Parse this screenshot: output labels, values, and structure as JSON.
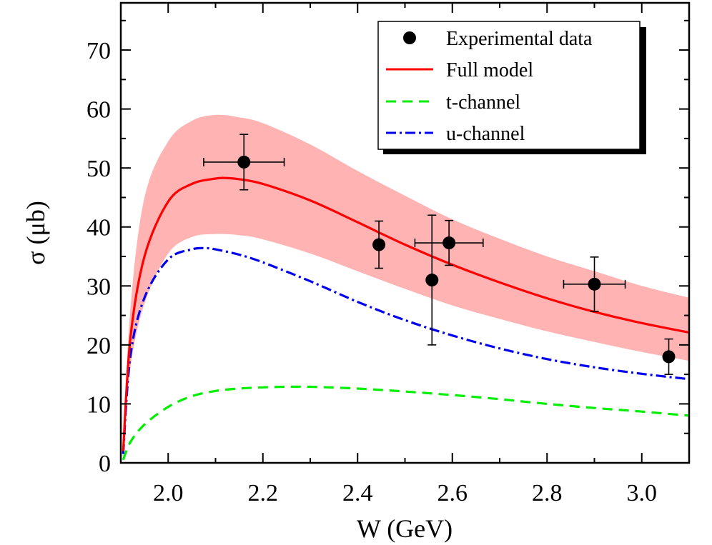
{
  "chart_data": {
    "type": "line",
    "title": "",
    "xlabel": "W (GeV)",
    "ylabel": "σ (μb)",
    "xlim": [
      1.9,
      3.1
    ],
    "ylim": [
      0,
      78
    ],
    "x_ticks": [
      2.0,
      2.2,
      2.4,
      2.6,
      2.8,
      3.0
    ],
    "x_tick_labels": [
      "2.0",
      "2.2",
      "2.4",
      "2.6",
      "2.8",
      "3.0"
    ],
    "y_ticks": [
      0,
      10,
      20,
      30,
      40,
      50,
      60,
      70
    ],
    "y_tick_labels": [
      "0",
      "10",
      "20",
      "30",
      "40",
      "50",
      "60",
      "70"
    ],
    "grid": false,
    "legend_position": "top-right",
    "legend": [
      "Experimental data",
      "Full model",
      "t-channel",
      "u-channel"
    ],
    "colors": {
      "data": "#000000",
      "full": "#ff0000",
      "t": "#00ee00",
      "u": "#0000ee",
      "band": "#ffb3b3"
    },
    "experimental_data": [
      {
        "x": 2.16,
        "y": 51.0,
        "xerr": 0.085,
        "yerr": 4.7
      },
      {
        "x": 2.445,
        "y": 37.0,
        "xerr": 0.0,
        "yerr": 4.0
      },
      {
        "x": 2.557,
        "y": 31.0,
        "xerr": 0.0,
        "yerr": 11.0
      },
      {
        "x": 2.593,
        "y": 37.3,
        "xerr": 0.072,
        "yerr": 3.8
      },
      {
        "x": 2.9,
        "y": 30.3,
        "xerr": 0.065,
        "yerr": 4.6
      },
      {
        "x": 3.057,
        "y": 18.0,
        "xerr": 0.0,
        "yerr": 3.0
      }
    ],
    "band": {
      "x": [
        1.905,
        1.92,
        1.95,
        2.0,
        2.05,
        2.1,
        2.15,
        2.2,
        2.3,
        2.4,
        2.5,
        2.6,
        2.7,
        2.8,
        2.9,
        3.0,
        3.1
      ],
      "upper": [
        2.0,
        26.0,
        45.0,
        54.5,
        58.0,
        59.0,
        58.6,
        57.6,
        54.0,
        49.5,
        45.3,
        41.3,
        38.0,
        35.0,
        32.5,
        30.0,
        28.0
      ],
      "lower": [
        1.0,
        16.0,
        27.0,
        35.5,
        38.3,
        38.8,
        38.6,
        37.9,
        35.5,
        32.5,
        29.5,
        26.7,
        24.4,
        22.3,
        20.5,
        18.8,
        17.3
      ]
    },
    "series": [
      {
        "name": "Full model",
        "x": [
          1.905,
          1.92,
          1.95,
          2.0,
          2.05,
          2.1,
          2.12,
          2.15,
          2.2,
          2.3,
          2.4,
          2.5,
          2.6,
          2.7,
          2.8,
          2.9,
          3.0,
          3.1
        ],
        "values": [
          2.0,
          21.0,
          35.0,
          44.3,
          47.3,
          48.2,
          48.3,
          48.1,
          47.3,
          44.5,
          40.8,
          37.0,
          33.6,
          30.6,
          27.9,
          25.6,
          23.7,
          22.1
        ]
      },
      {
        "name": "t-channel",
        "x": [
          1.905,
          1.92,
          1.95,
          2.0,
          2.05,
          2.1,
          2.15,
          2.2,
          2.25,
          2.3,
          2.4,
          2.5,
          2.6,
          2.7,
          2.8,
          2.9,
          3.0,
          3.1
        ],
        "values": [
          0.5,
          3.5,
          6.5,
          9.5,
          11.3,
          12.2,
          12.6,
          12.8,
          12.9,
          12.9,
          12.6,
          12.1,
          11.5,
          10.8,
          10.0,
          9.3,
          8.7,
          8.0
        ]
      },
      {
        "name": "u-channel",
        "x": [
          1.905,
          1.92,
          1.95,
          2.0,
          2.05,
          2.08,
          2.1,
          2.15,
          2.2,
          2.3,
          2.4,
          2.5,
          2.6,
          2.7,
          2.8,
          2.9,
          3.0,
          3.1
        ],
        "values": [
          1.5,
          18.0,
          28.0,
          34.5,
          36.2,
          36.4,
          36.2,
          35.3,
          34.0,
          30.8,
          27.3,
          24.2,
          21.6,
          19.4,
          17.6,
          16.2,
          15.1,
          14.2
        ]
      }
    ]
  }
}
